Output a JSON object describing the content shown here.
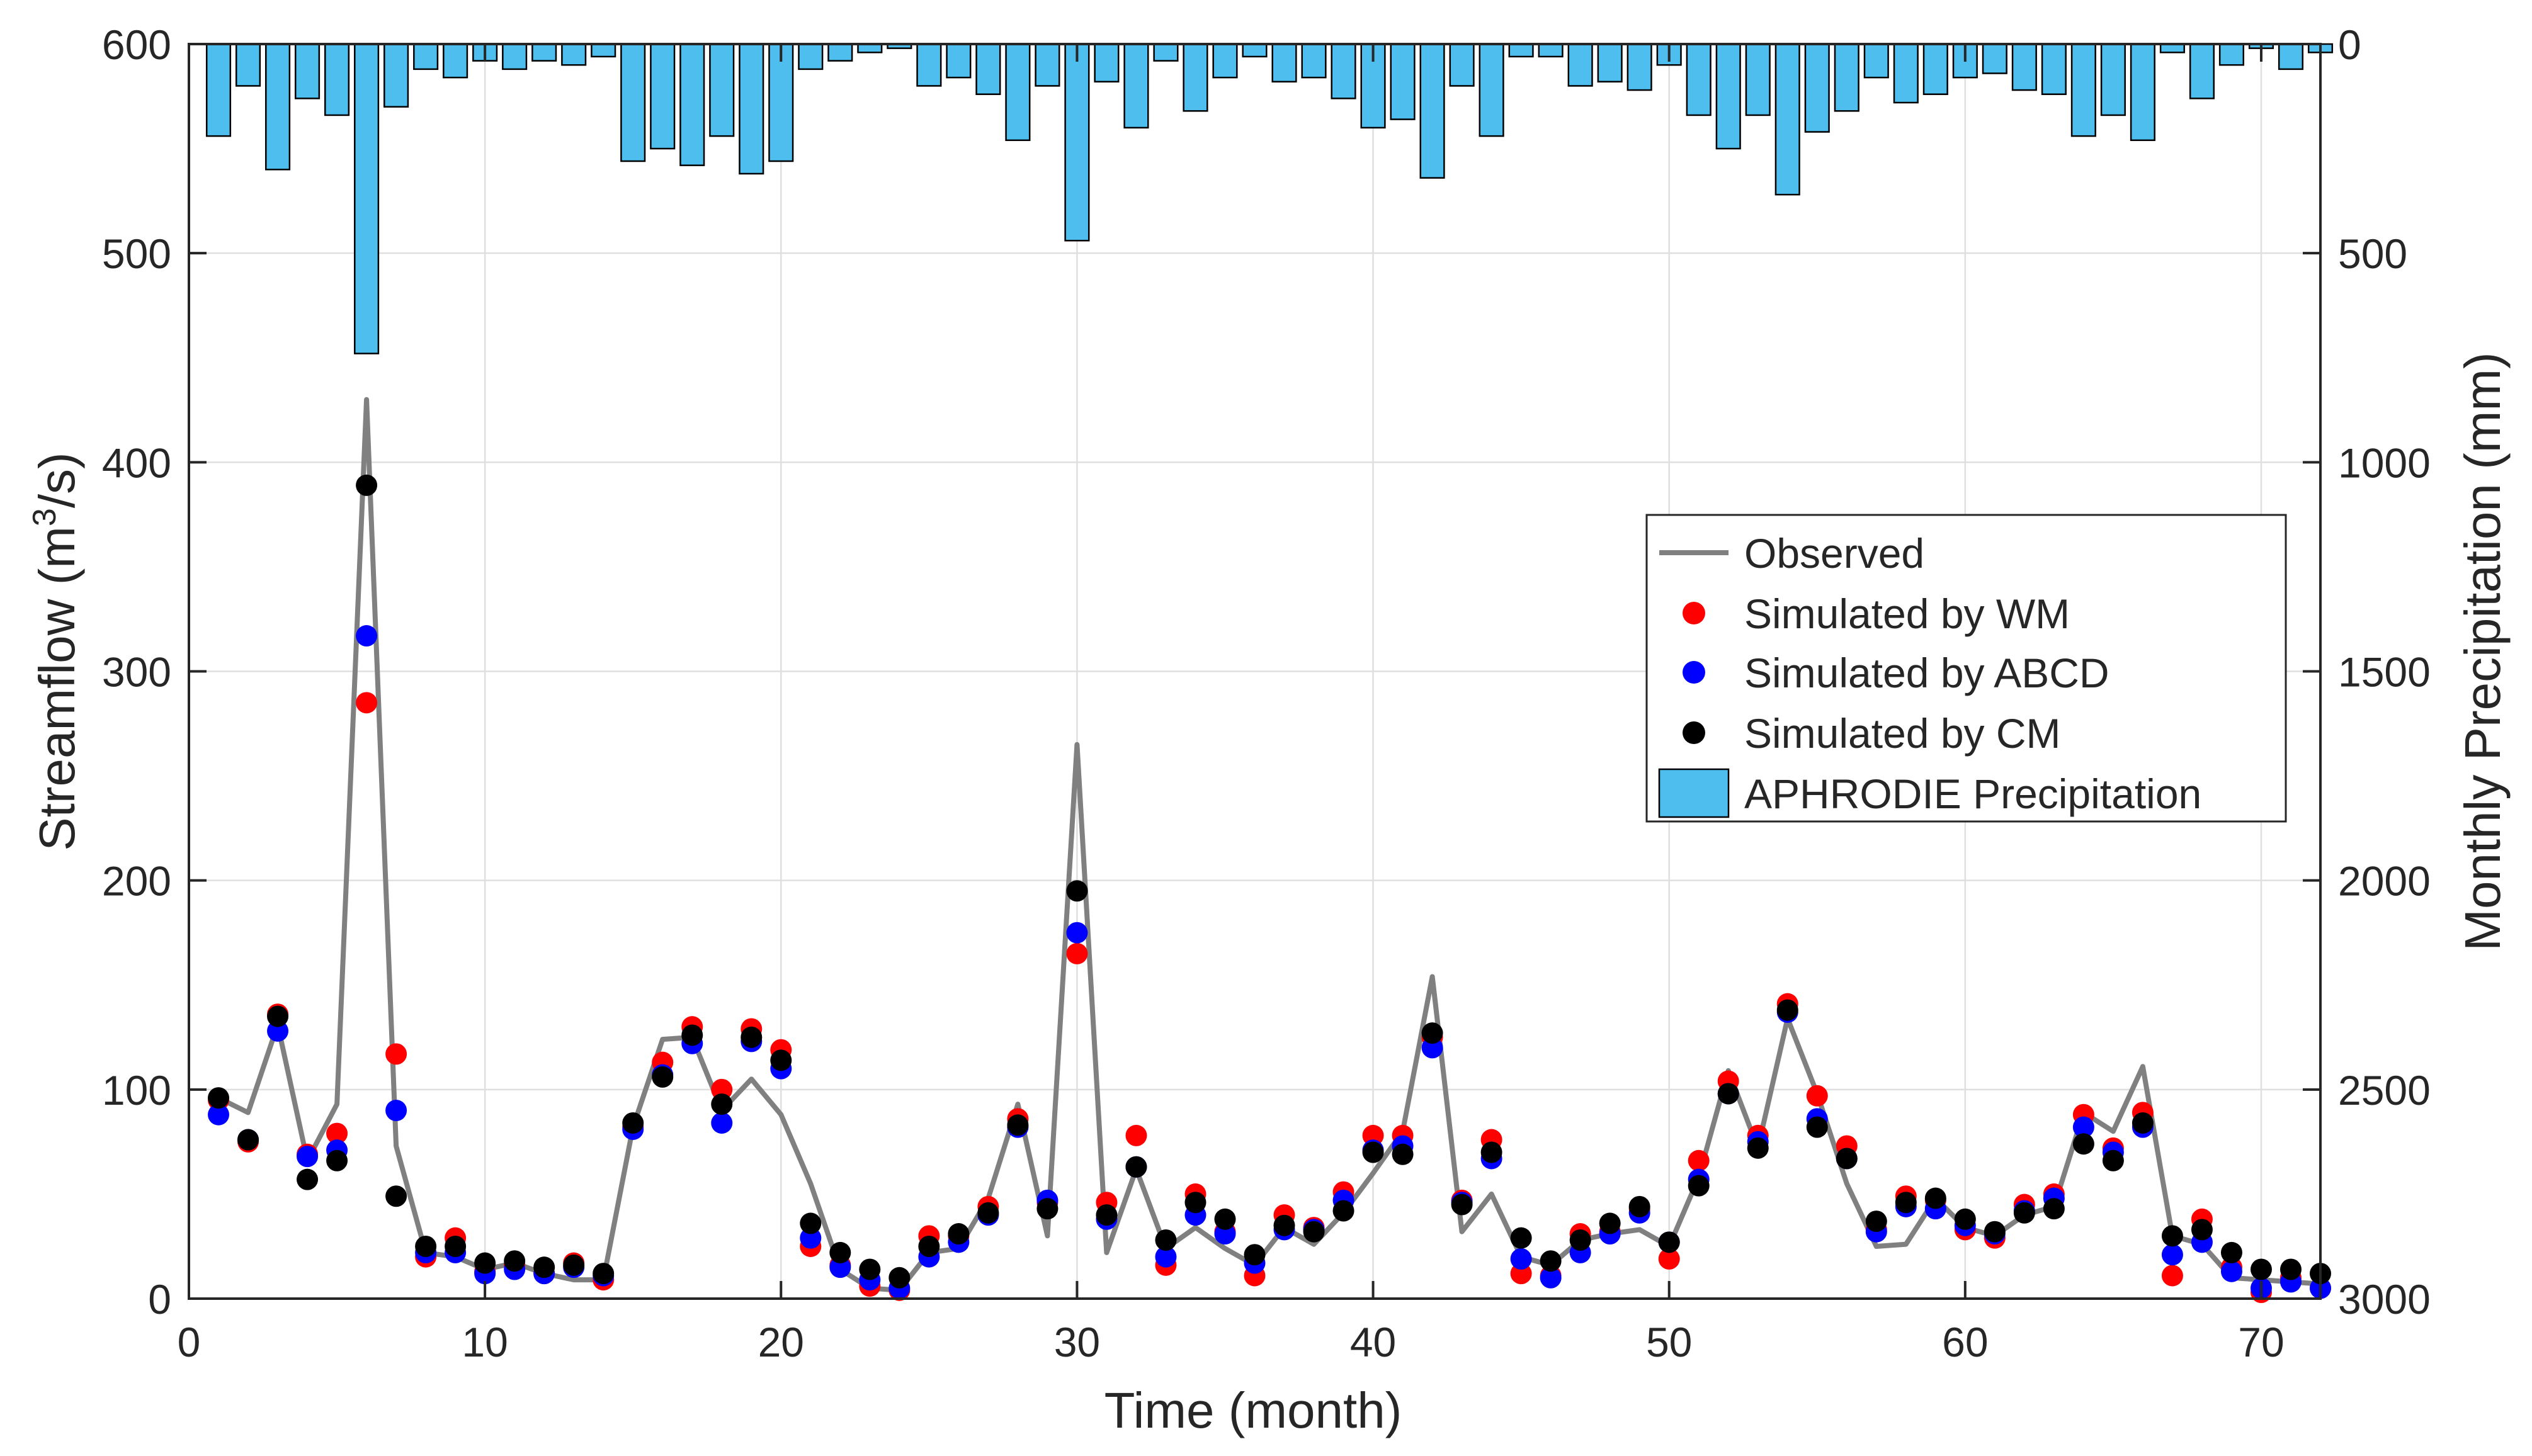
{
  "chart_data": {
    "type": "bar+line+scatter",
    "xlabel": "Time (month)",
    "ylabel": "Streamflow (m",
    "ylabel_sup": "3",
    "ylabel_end": "/s)",
    "y2label": "Monthly Precipitation (mm)",
    "xlim": [
      0,
      72
    ],
    "ylim": [
      0,
      600
    ],
    "y2lim": [
      3000,
      0
    ],
    "x_ticks": [
      0,
      10,
      20,
      30,
      40,
      50,
      60,
      70
    ],
    "x_tick_labels": [
      "0",
      "10",
      "20",
      "30",
      "40",
      "50",
      "60",
      "70"
    ],
    "y_ticks": [
      0,
      100,
      200,
      300,
      400,
      500,
      600
    ],
    "y_tick_labels": [
      "0",
      "100",
      "200",
      "300",
      "400",
      "500",
      "600"
    ],
    "y2_ticks": [
      0,
      500,
      1000,
      1500,
      2000,
      2500,
      3000
    ],
    "y2_tick_labels": [
      "0",
      "500",
      "1000",
      "1500",
      "2000",
      "2500",
      "3000"
    ],
    "grid": true,
    "legend_position": "center-right",
    "colors": {
      "observed": "#808080",
      "wm": "#ff0000",
      "abcd": "#0000ff",
      "cm": "#000000",
      "precip_fill": "#4dbeee",
      "precip_edge": "#000000"
    },
    "x": [
      1,
      2,
      3,
      4,
      5,
      6,
      7,
      8,
      9,
      10,
      11,
      12,
      13,
      14,
      15,
      16,
      17,
      18,
      19,
      20,
      21,
      22,
      23,
      24,
      25,
      26,
      27,
      28,
      29,
      30,
      31,
      32,
      33,
      34,
      35,
      36,
      37,
      38,
      39,
      40,
      41,
      42,
      43,
      44,
      45,
      46,
      47,
      48,
      49,
      50,
      51,
      52,
      53,
      54,
      55,
      56,
      57,
      58,
      59,
      60,
      61,
      62,
      63,
      64,
      65,
      66,
      67,
      68,
      69,
      70,
      71,
      72
    ],
    "series": [
      {
        "name": "Observed",
        "key": "observed",
        "kind": "line",
        "values": [
          96,
          89,
          131,
          66,
          93,
          430,
          73,
          22,
          20,
          14,
          17,
          12,
          9,
          9,
          82,
          124,
          125,
          90,
          105,
          88,
          55,
          14,
          5,
          4,
          22,
          24,
          48,
          93,
          30,
          265,
          22,
          62,
          24,
          34,
          24,
          16,
          34,
          26,
          41,
          60,
          80,
          154,
          32,
          50,
          20,
          16,
          28,
          31,
          33,
          25,
          58,
          109,
          72,
          134,
          98,
          55,
          25,
          26,
          48,
          34,
          30,
          40,
          44,
          89,
          80,
          111,
          30,
          26,
          10,
          9,
          8,
          7
        ]
      },
      {
        "name": "Simulated by WM",
        "key": "wm",
        "kind": "scatter",
        "values": [
          95,
          75,
          136,
          69,
          79,
          285,
          117,
          20,
          29,
          13,
          16,
          12,
          17,
          9,
          82,
          113,
          130,
          100,
          129,
          119,
          25,
          16,
          6,
          4,
          30,
          30,
          44,
          86,
          46,
          165,
          46,
          78,
          16,
          50,
          32,
          11,
          40,
          34,
          51,
          78,
          78,
          125,
          47,
          76,
          12,
          11,
          31,
          32,
          43,
          19,
          66,
          104,
          78,
          141,
          97,
          73,
          33,
          49,
          47,
          33,
          29,
          45,
          50,
          88,
          72,
          89,
          11,
          38,
          15,
          3,
          10,
          5
        ]
      },
      {
        "name": "Simulated by ABCD",
        "key": "abcd",
        "kind": "scatter",
        "values": [
          88,
          76,
          128,
          68,
          71,
          317,
          90,
          22,
          22,
          12,
          14,
          12,
          15,
          11,
          81,
          107,
          122,
          84,
          123,
          110,
          29,
          15,
          9,
          5,
          20,
          27,
          40,
          82,
          47,
          175,
          38,
          63,
          20,
          40,
          31,
          17,
          33,
          33,
          47,
          71,
          73,
          120,
          46,
          67,
          19,
          10,
          22,
          31,
          41,
          27,
          57,
          98,
          75,
          137,
          86,
          67,
          32,
          44,
          43,
          35,
          31,
          42,
          48,
          82,
          70,
          82,
          21,
          27,
          13,
          5,
          8,
          5
        ]
      },
      {
        "name": "Simulated by CM",
        "key": "cm",
        "kind": "scatter",
        "values": [
          96,
          76,
          135,
          57,
          66,
          389,
          49,
          25,
          25,
          17,
          18,
          15,
          16,
          12,
          84,
          106,
          126,
          93,
          125,
          114,
          36,
          22,
          14,
          10,
          25,
          31,
          41,
          83,
          43,
          195,
          40,
          63,
          28,
          46,
          38,
          21,
          35,
          32,
          42,
          70,
          69,
          127,
          45,
          70,
          29,
          18,
          28,
          36,
          44,
          27,
          54,
          98,
          72,
          138,
          82,
          67,
          37,
          46,
          48,
          38,
          32,
          41,
          43,
          74,
          66,
          84,
          30,
          33,
          22,
          14,
          14,
          12
        ]
      },
      {
        "name": "APHRODIE Precipitation",
        "key": "precip",
        "kind": "bar",
        "axis": "right",
        "values": [
          220,
          100,
          300,
          130,
          170,
          740,
          150,
          60,
          80,
          40,
          60,
          40,
          50,
          30,
          280,
          250,
          290,
          220,
          310,
          280,
          60,
          40,
          20,
          10,
          100,
          80,
          120,
          230,
          100,
          470,
          90,
          200,
          40,
          160,
          80,
          30,
          90,
          80,
          130,
          200,
          180,
          320,
          100,
          220,
          30,
          30,
          100,
          90,
          110,
          50,
          170,
          250,
          170,
          360,
          210,
          160,
          80,
          140,
          120,
          80,
          70,
          110,
          120,
          220,
          170,
          230,
          20,
          130,
          50,
          10,
          60,
          20
        ]
      }
    ]
  }
}
